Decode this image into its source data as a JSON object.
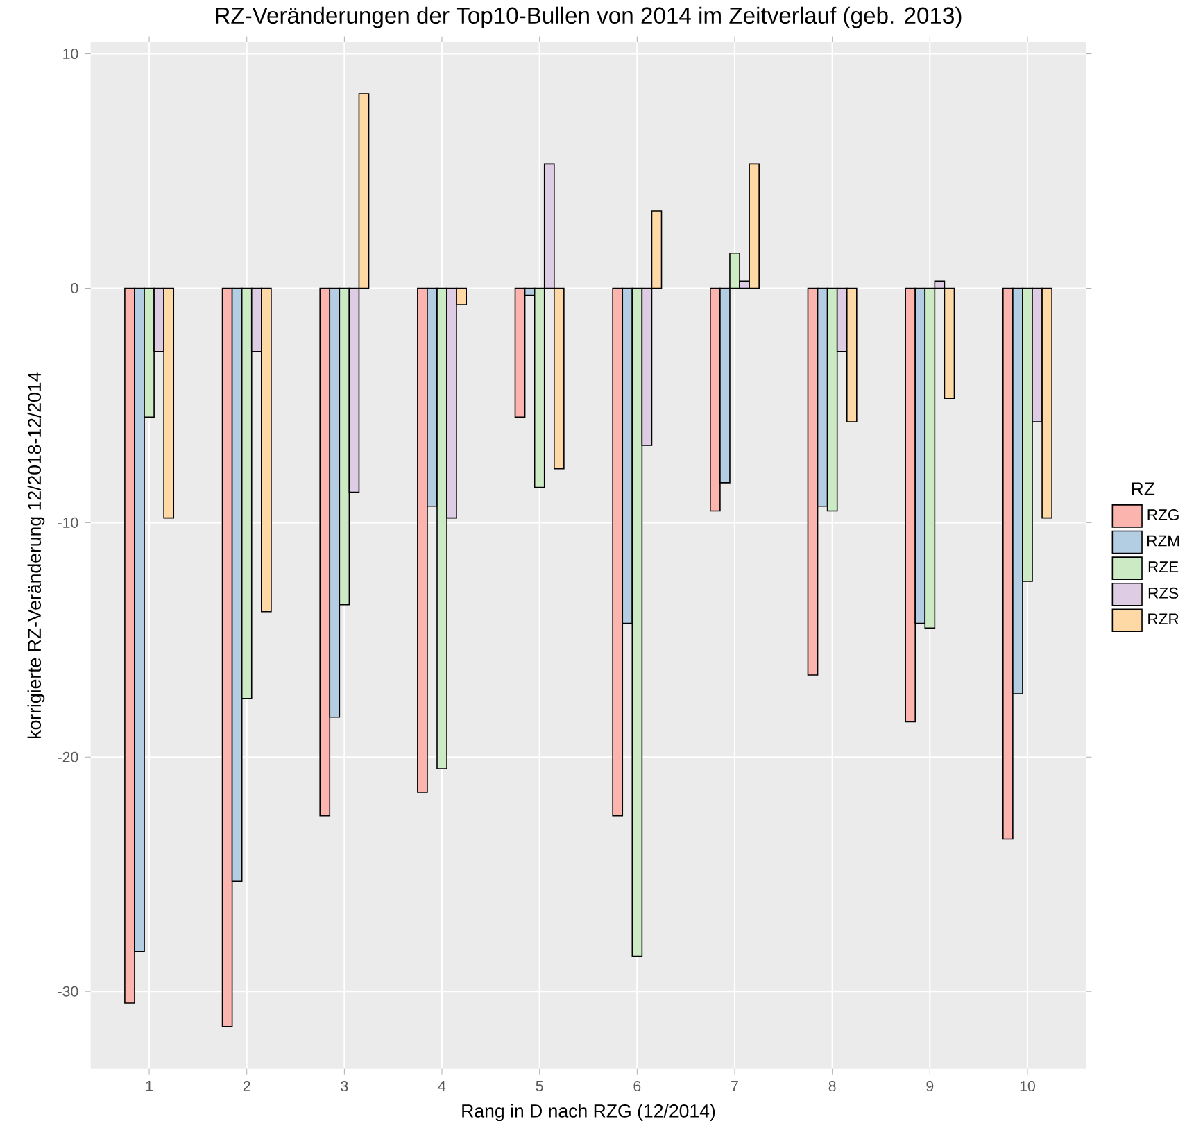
{
  "chart_data": {
    "type": "bar",
    "title": "RZ-Veränderungen der Top10-Bullen von 2014 im Zeitverlauf (geb. 2013)",
    "xlabel": "Rang in D nach RZG (12/2014)",
    "ylabel": "korrigierte RZ-Veränderung 12/2018-12/2014",
    "legend_title": "RZ",
    "categories": [
      "1",
      "2",
      "3",
      "4",
      "5",
      "6",
      "7",
      "8",
      "9",
      "10"
    ],
    "series": [
      {
        "name": "RZG",
        "color": "#fbb4ae",
        "values": [
          -30.5,
          -31.5,
          -22.5,
          -21.5,
          -5.5,
          -22.5,
          -9.5,
          -16.5,
          -18.5,
          -23.5
        ]
      },
      {
        "name": "RZM",
        "color": "#b3cde3",
        "values": [
          -28.3,
          -25.3,
          -18.3,
          -9.3,
          -0.3,
          -14.3,
          -8.3,
          -9.3,
          -14.3,
          -17.3
        ]
      },
      {
        "name": "RZE",
        "color": "#ccebc5",
        "values": [
          -5.5,
          -17.5,
          -13.5,
          -20.5,
          -8.5,
          -28.5,
          1.5,
          -9.5,
          -14.5,
          -12.5
        ]
      },
      {
        "name": "RZS",
        "color": "#decbe4",
        "values": [
          -2.7,
          -2.7,
          -8.7,
          -9.8,
          5.3,
          -6.7,
          0.3,
          -2.7,
          0.3,
          -5.7
        ]
      },
      {
        "name": "RZR",
        "color": "#fed9a6",
        "values": [
          -9.8,
          -13.8,
          8.3,
          -0.7,
          -7.7,
          3.3,
          5.3,
          -5.7,
          -4.7,
          -9.8
        ]
      }
    ],
    "ylim": [
      -33.3,
      10.5
    ],
    "yticks": [
      -30,
      -20,
      -10,
      0,
      10
    ],
    "grid": true,
    "legend": "right"
  }
}
